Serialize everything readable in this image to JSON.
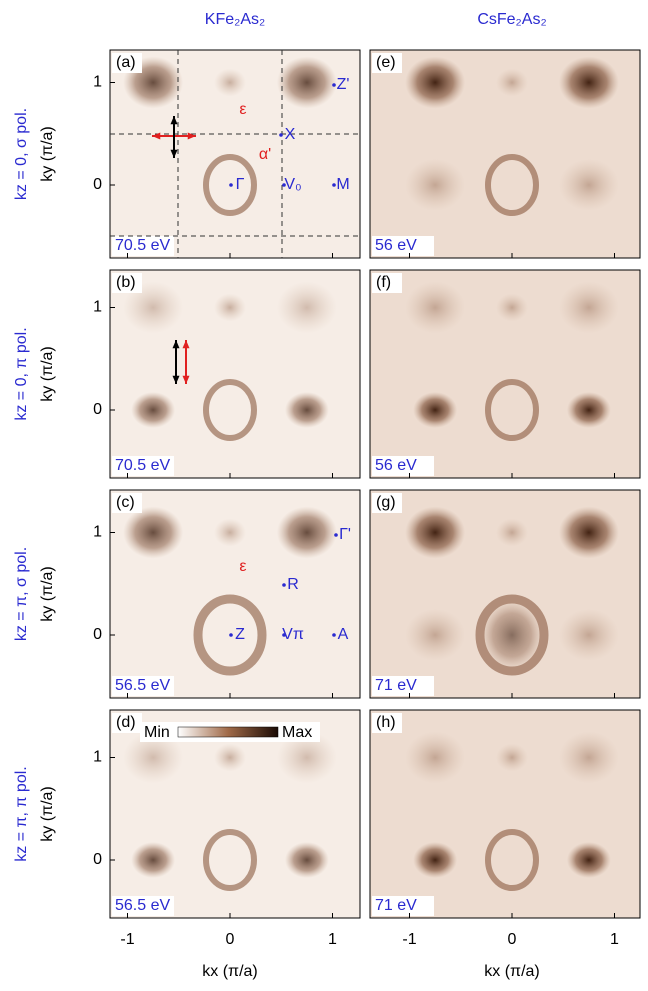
{
  "columns": [
    "KFe₂As₂",
    "CsFe₂As₂"
  ],
  "rows": [
    {
      "label": "kz = 0, σ pol."
    },
    {
      "label": "kz = 0, π pol."
    },
    {
      "label": "kz = π, σ pol."
    },
    {
      "label": "kz = π, π pol."
    }
  ],
  "panels": [
    {
      "label": "(a)",
      "energy": "70.5 eV",
      "annotations": [
        {
          "text": "ε",
          "color": "#e02020"
        },
        {
          "text": "α'",
          "color": "#e02020"
        },
        {
          "text": "X",
          "color": "#2a2ad0"
        },
        {
          "text": "Γ",
          "color": "#2a2ad0"
        },
        {
          "text": "V₀",
          "color": "#2a2ad0"
        },
        {
          "text": "M",
          "color": "#2a2ad0"
        },
        {
          "text": "Z'",
          "color": "#2a2ad0"
        }
      ]
    },
    {
      "label": "(b)",
      "energy": "70.5 eV",
      "annotations": []
    },
    {
      "label": "(c)",
      "energy": "56.5 eV",
      "annotations": [
        {
          "text": "ε",
          "color": "#e02020"
        },
        {
          "text": "R",
          "color": "#2a2ad0"
        },
        {
          "text": "Γ'",
          "color": "#2a2ad0"
        },
        {
          "text": "Z",
          "color": "#2a2ad0"
        },
        {
          "text": "Vπ",
          "color": "#2a2ad0"
        },
        {
          "text": "A",
          "color": "#2a2ad0"
        }
      ]
    },
    {
      "label": "(d)",
      "energy": "56.5 eV",
      "annotations": []
    },
    {
      "label": "(e)",
      "energy": "56 eV",
      "annotations": []
    },
    {
      "label": "(f)",
      "energy": "56 eV",
      "annotations": []
    },
    {
      "label": "(g)",
      "energy": "71 eV",
      "annotations": []
    },
    {
      "label": "(h)",
      "energy": "71 eV",
      "annotations": []
    }
  ],
  "axes": {
    "x_label": "kx (π/a)",
    "y_label": "ky (π/a)",
    "xticks": [
      -1,
      0,
      1
    ],
    "yticks": [
      0,
      1
    ]
  },
  "colorbar": {
    "min_label": "Min",
    "max_label": "Max"
  }
}
